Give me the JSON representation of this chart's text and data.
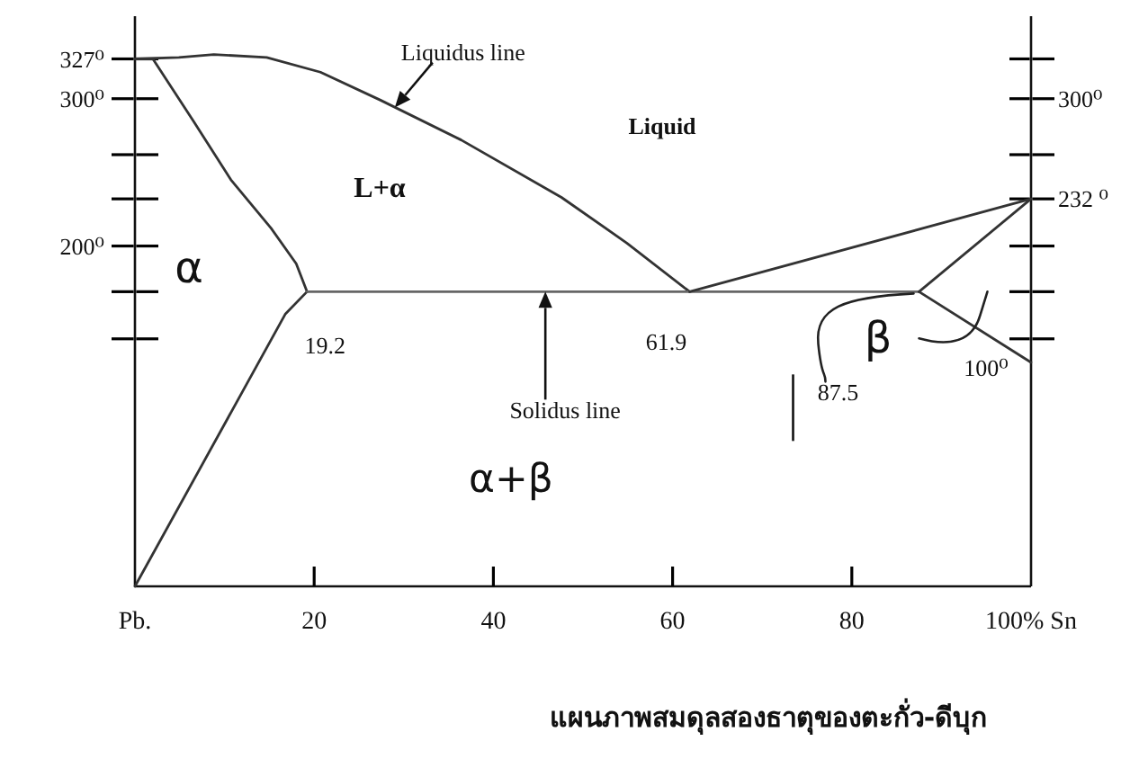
{
  "chart_data": {
    "type": "line",
    "line_style": "solid",
    "xlim": [
      0,
      100
    ],
    "ylim": [
      -31,
      356
    ],
    "y2lim": [
      -31,
      356
    ],
    "xticks": [
      {
        "value": 0,
        "label": "Pb."
      },
      20,
      40,
      60,
      80,
      {
        "value": 100,
        "label": "100% Sn"
      }
    ],
    "yticks": [
      {
        "value": 327,
        "label": "327⁰"
      },
      {
        "value": 300,
        "label": "300⁰"
      },
      {
        "value": 262,
        "label": null
      },
      {
        "value": 232,
        "label": null
      },
      {
        "value": 200,
        "label": "200⁰"
      },
      {
        "value": 169,
        "label": null
      },
      {
        "value": 137,
        "label": null
      }
    ],
    "y2ticks": [
      {
        "value": 327,
        "label": null
      },
      {
        "value": 300,
        "label": "300⁰"
      },
      {
        "value": 262,
        "label": null
      },
      {
        "value": 232,
        "label": "232 ⁰"
      },
      {
        "value": 200,
        "label": null
      },
      {
        "value": 169,
        "label": null
      },
      {
        "value": 137,
        "label": null
      }
    ],
    "series": [
      {
        "color": "#333333",
        "x": [
          0,
          4.9,
          8.8,
          14.7,
          20.7,
          27.4,
          36.4,
          47.6,
          54.9,
          61.9
        ],
        "values": [
          327,
          328,
          330,
          328,
          318,
          299,
          272,
          233,
          202,
          169
        ]
      },
      {
        "color": "#333333",
        "x": [
          0,
          2,
          6.5,
          10.7,
          15.2,
          18,
          19.2
        ],
        "values": [
          327,
          327,
          285,
          245,
          212,
          188,
          169
        ]
      },
      {
        "color": "#333333",
        "x": [
          19.2,
          16.8,
          0
        ],
        "values": [
          169,
          154,
          -31
        ]
      },
      {
        "color": "#666666",
        "x": [
          19.2,
          87.5
        ],
        "values": [
          169,
          169
        ]
      },
      {
        "color": "#333333",
        "x": [
          61.9,
          100
        ],
        "values": [
          169,
          232
        ]
      },
      {
        "color": "#333333",
        "x": [
          87.5,
          100
        ],
        "values": [
          169,
          232
        ]
      },
      {
        "color": "#333333",
        "x": [
          87.5,
          100
        ],
        "values": [
          169,
          121
        ]
      }
    ],
    "annotations": [
      {
        "text": "Liquidus line",
        "x": 29.0,
        "y": 294
      },
      "Liquid",
      "L+α",
      "α",
      {
        "text": "19.2",
        "x": 19.2,
        "y": 169
      },
      {
        "text": "61.9",
        "x": 61.9,
        "y": 169
      },
      {
        "text": "Solidus line",
        "x": 45.8,
        "y": 169
      },
      "α+β",
      "β",
      {
        "text": "87.5",
        "x": 87.5,
        "y": 169
      },
      {
        "text": "100⁰",
        "x": 100,
        "y": 121
      },
      "แผนภาพสมดุลสองธาตุของตะกั่ว-ดีบุก"
    ]
  }
}
